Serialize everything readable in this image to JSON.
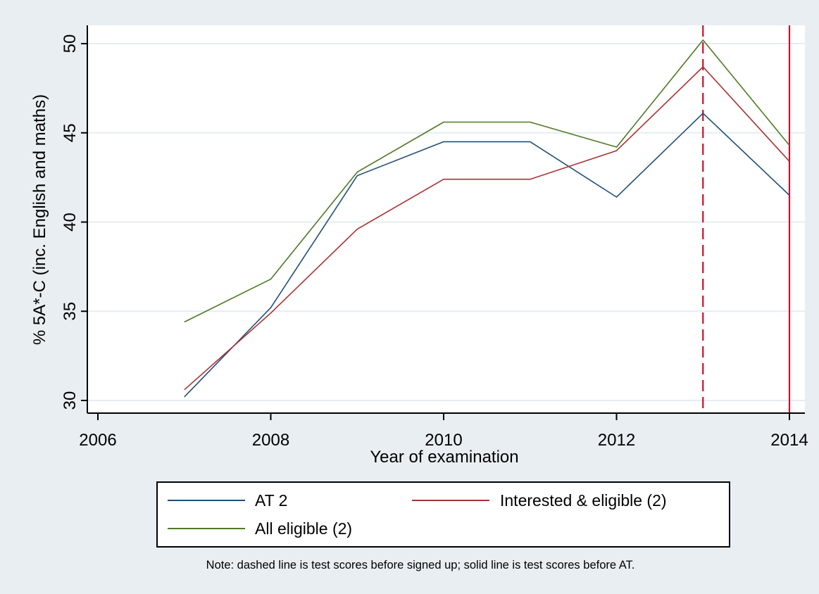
{
  "chart_data": {
    "type": "line",
    "title": "",
    "xlabel": "Year of examination",
    "ylabel": "% 5A*-C (inc. English and maths)",
    "xlim": [
      2006,
      2014
    ],
    "ylim": [
      30,
      50
    ],
    "x_ticks": [
      2006,
      2008,
      2010,
      2012,
      2014
    ],
    "y_ticks": [
      30,
      35,
      40,
      45,
      50
    ],
    "grid": true,
    "legend_position": "bottom",
    "series": [
      {
        "name": "AT 2",
        "color": "#1f4e79",
        "x": [
          2007,
          2008,
          2009,
          2010,
          2011,
          2012,
          2013,
          2014
        ],
        "y": [
          30.2,
          35.2,
          42.6,
          44.5,
          44.5,
          41.4,
          46.1,
          41.5
        ]
      },
      {
        "name": "Interested & eligible (2)",
        "color": "#a83232",
        "x": [
          2007,
          2008,
          2009,
          2010,
          2011,
          2012,
          2013,
          2014
        ],
        "y": [
          30.6,
          34.9,
          39.6,
          42.4,
          42.4,
          44.0,
          48.7,
          43.4
        ]
      },
      {
        "name": "All eligible (2)",
        "color": "#4e7a23",
        "x": [
          2007,
          2008,
          2009,
          2010,
          2011,
          2012,
          2013,
          2014
        ],
        "y": [
          34.4,
          36.8,
          42.8,
          45.6,
          45.6,
          44.2,
          50.2,
          44.3
        ]
      }
    ],
    "reference_lines": [
      {
        "x": 2013,
        "style": "dashed",
        "color": "#c8102e"
      },
      {
        "x": 2014,
        "style": "solid",
        "color": "#c8102e"
      }
    ],
    "note": "Note: dashed line is test scores before signed up; solid line is test scores before AT."
  }
}
